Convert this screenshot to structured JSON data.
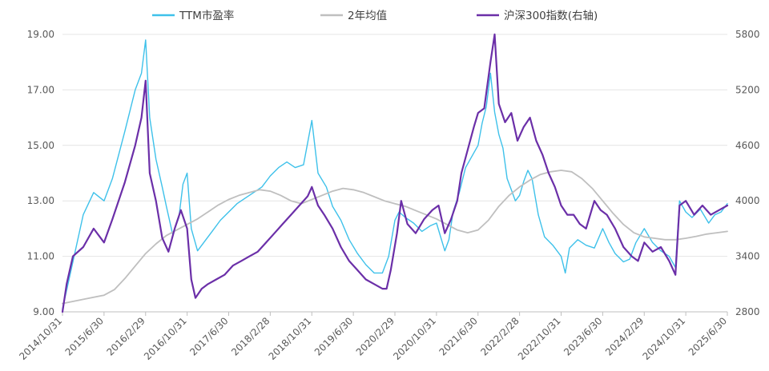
{
  "chart_data": {
    "type": "line",
    "legend_position": "top",
    "grid": true,
    "x_ticks": [
      "2014/10/31",
      "2015/6/30",
      "2016/2/29",
      "2016/10/31",
      "2017/6/30",
      "2018/2/28",
      "2018/10/31",
      "2019/6/30",
      "2020/2/29",
      "2020/10/31",
      "2021/6/30",
      "2022/2/28",
      "2022/10/31",
      "2023/6/30",
      "2024/2/29",
      "2024/10/31",
      "2025/6/30"
    ],
    "y_left": {
      "min": 9,
      "max": 19,
      "ticks": [
        "9.00",
        "11.00",
        "13.00",
        "15.00",
        "17.00",
        "19.00"
      ]
    },
    "y_right": {
      "min": 2800,
      "max": 5800,
      "ticks": [
        "2800",
        "3400",
        "4000",
        "4600",
        "5200",
        "5800"
      ]
    },
    "series": [
      {
        "name": "TTM市盈率",
        "axis": "left",
        "color": "#3ec1ea",
        "values": [
          [
            0,
            9.1
          ],
          [
            0.25,
            10.8
          ],
          [
            0.5,
            12.5
          ],
          [
            0.75,
            13.3
          ],
          [
            1,
            13.0
          ],
          [
            1.2,
            13.8
          ],
          [
            1.5,
            15.5
          ],
          [
            1.75,
            17.0
          ],
          [
            1.9,
            17.6
          ],
          [
            2.0,
            18.8
          ],
          [
            2.1,
            16.0
          ],
          [
            2.25,
            14.5
          ],
          [
            2.4,
            13.5
          ],
          [
            2.5,
            12.8
          ],
          [
            2.65,
            11.8
          ],
          [
            2.8,
            12.4
          ],
          [
            2.9,
            13.6
          ],
          [
            3.0,
            14.0
          ],
          [
            3.1,
            12.0
          ],
          [
            3.25,
            11.2
          ],
          [
            3.4,
            11.5
          ],
          [
            3.6,
            11.9
          ],
          [
            3.8,
            12.3
          ],
          [
            4.0,
            12.6
          ],
          [
            4.2,
            12.9
          ],
          [
            4.4,
            13.1
          ],
          [
            4.6,
            13.3
          ],
          [
            4.8,
            13.5
          ],
          [
            5.0,
            13.9
          ],
          [
            5.2,
            14.2
          ],
          [
            5.4,
            14.4
          ],
          [
            5.6,
            14.2
          ],
          [
            5.8,
            14.3
          ],
          [
            6.0,
            15.9
          ],
          [
            6.15,
            14.0
          ],
          [
            6.35,
            13.5
          ],
          [
            6.5,
            12.8
          ],
          [
            6.7,
            12.3
          ],
          [
            6.9,
            11.6
          ],
          [
            7.1,
            11.1
          ],
          [
            7.3,
            10.7
          ],
          [
            7.5,
            10.4
          ],
          [
            7.7,
            10.4
          ],
          [
            7.85,
            11.0
          ],
          [
            8.0,
            12.3
          ],
          [
            8.1,
            12.6
          ],
          [
            8.25,
            12.4
          ],
          [
            8.45,
            12.2
          ],
          [
            8.65,
            11.9
          ],
          [
            8.85,
            12.1
          ],
          [
            9.0,
            12.2
          ],
          [
            9.2,
            11.2
          ],
          [
            9.3,
            11.6
          ],
          [
            9.4,
            12.6
          ],
          [
            9.55,
            13.3
          ],
          [
            9.7,
            14.2
          ],
          [
            9.85,
            14.6
          ],
          [
            10.0,
            15.0
          ],
          [
            10.1,
            15.8
          ],
          [
            10.2,
            16.4
          ],
          [
            10.3,
            17.6
          ],
          [
            10.4,
            16.2
          ],
          [
            10.5,
            15.4
          ],
          [
            10.6,
            14.9
          ],
          [
            10.7,
            13.8
          ],
          [
            10.8,
            13.4
          ],
          [
            10.9,
            13.0
          ],
          [
            11.0,
            13.2
          ],
          [
            11.1,
            13.7
          ],
          [
            11.2,
            14.1
          ],
          [
            11.3,
            13.8
          ],
          [
            11.45,
            12.5
          ],
          [
            11.6,
            11.7
          ],
          [
            11.8,
            11.4
          ],
          [
            12.0,
            11.0
          ],
          [
            12.1,
            10.4
          ],
          [
            12.2,
            11.3
          ],
          [
            12.4,
            11.6
          ],
          [
            12.6,
            11.4
          ],
          [
            12.8,
            11.3
          ],
          [
            13.0,
            12.0
          ],
          [
            13.15,
            11.5
          ],
          [
            13.3,
            11.1
          ],
          [
            13.5,
            10.8
          ],
          [
            13.65,
            10.9
          ],
          [
            13.8,
            11.5
          ],
          [
            14.0,
            12.0
          ],
          [
            14.2,
            11.5
          ],
          [
            14.4,
            11.2
          ],
          [
            14.6,
            11.0
          ],
          [
            14.75,
            10.6
          ],
          [
            14.85,
            13.0
          ],
          [
            15.0,
            12.6
          ],
          [
            15.15,
            12.4
          ],
          [
            15.35,
            12.7
          ],
          [
            15.55,
            12.2
          ],
          [
            15.7,
            12.5
          ],
          [
            15.85,
            12.6
          ],
          [
            16.0,
            12.9
          ]
        ]
      },
      {
        "name": "2年均值",
        "axis": "left",
        "color": "#bfbfbf",
        "values": [
          [
            0,
            9.3
          ],
          [
            0.5,
            9.45
          ],
          [
            1,
            9.6
          ],
          [
            1.25,
            9.8
          ],
          [
            1.5,
            10.2
          ],
          [
            1.75,
            10.65
          ],
          [
            2.0,
            11.1
          ],
          [
            2.25,
            11.45
          ],
          [
            2.5,
            11.75
          ],
          [
            2.75,
            11.95
          ],
          [
            3.0,
            12.15
          ],
          [
            3.25,
            12.35
          ],
          [
            3.5,
            12.6
          ],
          [
            3.75,
            12.85
          ],
          [
            4.0,
            13.05
          ],
          [
            4.25,
            13.2
          ],
          [
            4.5,
            13.3
          ],
          [
            4.75,
            13.4
          ],
          [
            5.0,
            13.35
          ],
          [
            5.25,
            13.2
          ],
          [
            5.5,
            13.0
          ],
          [
            5.75,
            12.9
          ],
          [
            6.0,
            13.05
          ],
          [
            6.25,
            13.2
          ],
          [
            6.5,
            13.35
          ],
          [
            6.75,
            13.45
          ],
          [
            7.0,
            13.4
          ],
          [
            7.25,
            13.3
          ],
          [
            7.5,
            13.15
          ],
          [
            7.75,
            13.0
          ],
          [
            8.0,
            12.9
          ],
          [
            8.25,
            12.8
          ],
          [
            8.5,
            12.65
          ],
          [
            8.75,
            12.5
          ],
          [
            9.0,
            12.35
          ],
          [
            9.25,
            12.15
          ],
          [
            9.5,
            11.95
          ],
          [
            9.75,
            11.85
          ],
          [
            10.0,
            11.95
          ],
          [
            10.25,
            12.3
          ],
          [
            10.5,
            12.8
          ],
          [
            10.75,
            13.2
          ],
          [
            11.0,
            13.5
          ],
          [
            11.25,
            13.75
          ],
          [
            11.5,
            13.95
          ],
          [
            11.75,
            14.05
          ],
          [
            12.0,
            14.1
          ],
          [
            12.25,
            14.05
          ],
          [
            12.5,
            13.8
          ],
          [
            12.75,
            13.45
          ],
          [
            13.0,
            13.0
          ],
          [
            13.25,
            12.55
          ],
          [
            13.5,
            12.15
          ],
          [
            13.75,
            11.85
          ],
          [
            14.0,
            11.7
          ],
          [
            14.25,
            11.65
          ],
          [
            14.5,
            11.6
          ],
          [
            14.75,
            11.6
          ],
          [
            15.0,
            11.65
          ],
          [
            15.25,
            11.72
          ],
          [
            15.5,
            11.8
          ],
          [
            15.75,
            11.85
          ],
          [
            16.0,
            11.9
          ]
        ]
      },
      {
        "name": "沪深300指数(右轴)",
        "axis": "right",
        "color": "#6b2fa8",
        "values": [
          [
            0,
            2800
          ],
          [
            0.1,
            3100
          ],
          [
            0.25,
            3400
          ],
          [
            0.5,
            3500
          ],
          [
            0.75,
            3700
          ],
          [
            1,
            3550
          ],
          [
            1.2,
            3800
          ],
          [
            1.5,
            4200
          ],
          [
            1.75,
            4600
          ],
          [
            1.9,
            4900
          ],
          [
            2.0,
            5300
          ],
          [
            2.1,
            4300
          ],
          [
            2.25,
            4000
          ],
          [
            2.4,
            3600
          ],
          [
            2.55,
            3450
          ],
          [
            2.7,
            3700
          ],
          [
            2.85,
            3900
          ],
          [
            3.0,
            3700
          ],
          [
            3.1,
            3150
          ],
          [
            3.2,
            2950
          ],
          [
            3.35,
            3050
          ],
          [
            3.5,
            3100
          ],
          [
            3.7,
            3150
          ],
          [
            3.9,
            3200
          ],
          [
            4.1,
            3300
          ],
          [
            4.3,
            3350
          ],
          [
            4.5,
            3400
          ],
          [
            4.7,
            3450
          ],
          [
            4.9,
            3550
          ],
          [
            5.1,
            3650
          ],
          [
            5.3,
            3750
          ],
          [
            5.5,
            3850
          ],
          [
            5.7,
            3950
          ],
          [
            5.9,
            4050
          ],
          [
            6.0,
            4150
          ],
          [
            6.15,
            3950
          ],
          [
            6.3,
            3850
          ],
          [
            6.5,
            3700
          ],
          [
            6.7,
            3500
          ],
          [
            6.9,
            3350
          ],
          [
            7.1,
            3250
          ],
          [
            7.3,
            3150
          ],
          [
            7.5,
            3100
          ],
          [
            7.7,
            3050
          ],
          [
            7.8,
            3050
          ],
          [
            7.9,
            3250
          ],
          [
            8.05,
            3650
          ],
          [
            8.15,
            4000
          ],
          [
            8.3,
            3750
          ],
          [
            8.5,
            3650
          ],
          [
            8.7,
            3800
          ],
          [
            8.9,
            3900
          ],
          [
            9.05,
            3950
          ],
          [
            9.2,
            3650
          ],
          [
            9.35,
            3800
          ],
          [
            9.5,
            4000
          ],
          [
            9.6,
            4300
          ],
          [
            9.75,
            4550
          ],
          [
            9.9,
            4800
          ],
          [
            10.0,
            4950
          ],
          [
            10.15,
            5000
          ],
          [
            10.3,
            5500
          ],
          [
            10.4,
            5800
          ],
          [
            10.5,
            5050
          ],
          [
            10.65,
            4850
          ],
          [
            10.8,
            4950
          ],
          [
            10.95,
            4650
          ],
          [
            11.1,
            4800
          ],
          [
            11.25,
            4900
          ],
          [
            11.4,
            4650
          ],
          [
            11.55,
            4500
          ],
          [
            11.7,
            4300
          ],
          [
            11.85,
            4150
          ],
          [
            12.0,
            3950
          ],
          [
            12.15,
            3850
          ],
          [
            12.3,
            3850
          ],
          [
            12.45,
            3750
          ],
          [
            12.6,
            3700
          ],
          [
            12.8,
            4000
          ],
          [
            12.95,
            3900
          ],
          [
            13.1,
            3850
          ],
          [
            13.3,
            3700
          ],
          [
            13.5,
            3500
          ],
          [
            13.7,
            3400
          ],
          [
            13.85,
            3350
          ],
          [
            14.0,
            3550
          ],
          [
            14.2,
            3450
          ],
          [
            14.4,
            3500
          ],
          [
            14.6,
            3350
          ],
          [
            14.75,
            3200
          ],
          [
            14.85,
            3950
          ],
          [
            15.0,
            4000
          ],
          [
            15.2,
            3850
          ],
          [
            15.4,
            3950
          ],
          [
            15.6,
            3850
          ],
          [
            15.8,
            3900
          ],
          [
            16.0,
            3950
          ]
        ]
      }
    ]
  }
}
